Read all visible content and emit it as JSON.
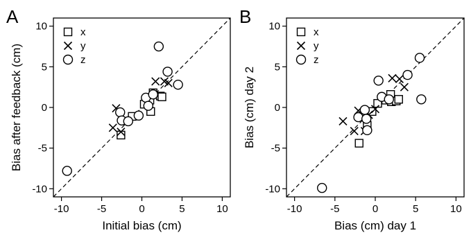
{
  "chart_data": [
    {
      "type": "scatter",
      "panel_letter": "A",
      "xlabel": "Initial bias (cm)",
      "ylabel": "Bias after feedback (cm)",
      "xlim": [
        -11,
        11
      ],
      "ylim": [
        -11,
        11
      ],
      "xticks": [
        -10,
        -5,
        0,
        5,
        10
      ],
      "yticks": [
        -10,
        -5,
        0,
        5,
        10
      ],
      "reference_line": "identity (dashed)",
      "grid": false,
      "legend_placement": "top-left",
      "series": [
        {
          "name": "x",
          "marker": "square",
          "points": [
            [
              -2.6,
              -3.4
            ],
            [
              -1.2,
              -1.1
            ],
            [
              0.3,
              0.4
            ],
            [
              1.1,
              -0.5
            ],
            [
              1.4,
              1.8
            ],
            [
              1.0,
              0.9
            ],
            [
              2.3,
              1.4
            ],
            [
              2.5,
              1.3
            ]
          ]
        },
        {
          "name": "y",
          "marker": "cross",
          "points": [
            [
              -3.6,
              -2.5
            ],
            [
              -3.2,
              -0.1
            ],
            [
              -2.6,
              -3.0
            ],
            [
              1.7,
              3.2
            ],
            [
              2.8,
              3.2
            ],
            [
              3.3,
              3.0
            ]
          ]
        },
        {
          "name": "z",
          "marker": "circle",
          "points": [
            [
              -9.3,
              -7.8
            ],
            [
              -2.7,
              -0.6
            ],
            [
              -2.5,
              -1.6
            ],
            [
              -1.7,
              -1.7
            ],
            [
              -0.4,
              -1.0
            ],
            [
              0.5,
              1.2
            ],
            [
              1.4,
              1.6
            ],
            [
              2.1,
              7.5
            ],
            [
              3.2,
              4.4
            ],
            [
              4.5,
              2.8
            ],
            [
              0.8,
              0.2
            ]
          ]
        }
      ]
    },
    {
      "type": "scatter",
      "panel_letter": "B",
      "xlabel": "Bias (cm) day 1",
      "ylabel": "Bias (cm) day 2",
      "xlim": [
        -11,
        11
      ],
      "ylim": [
        -11,
        11
      ],
      "xticks": [
        -10,
        -5,
        0,
        5,
        10
      ],
      "yticks": [
        -10,
        -5,
        0,
        5,
        10
      ],
      "reference_line": "identity (dashed)",
      "grid": false,
      "legend_placement": "top-left",
      "series": [
        {
          "name": "x",
          "marker": "square",
          "points": [
            [
              -2.0,
              -4.4
            ],
            [
              -1.0,
              -2.2
            ],
            [
              -0.4,
              -0.5
            ],
            [
              0.3,
              0.5
            ],
            [
              1.3,
              0.9
            ],
            [
              1.9,
              1.6
            ],
            [
              2.0,
              0.7
            ],
            [
              2.6,
              0.8
            ],
            [
              2.9,
              1.0
            ]
          ]
        },
        {
          "name": "y",
          "marker": "cross",
          "points": [
            [
              -4.0,
              -1.7
            ],
            [
              -2.6,
              -2.9
            ],
            [
              -2.1,
              -0.4
            ],
            [
              -1.3,
              -2.9
            ],
            [
              -0.8,
              -0.9
            ],
            [
              2.1,
              3.6
            ],
            [
              3.0,
              3.5
            ],
            [
              3.6,
              2.5
            ],
            [
              0.0,
              -0.2
            ]
          ]
        },
        {
          "name": "z",
          "marker": "circle",
          "points": [
            [
              -6.6,
              -9.9
            ],
            [
              -2.1,
              -1.2
            ],
            [
              -1.3,
              -0.3
            ],
            [
              -1.1,
              -1.4
            ],
            [
              -1.0,
              -2.8
            ],
            [
              0.4,
              3.3
            ],
            [
              0.8,
              1.3
            ],
            [
              1.7,
              1.0
            ],
            [
              4.0,
              4.0
            ],
            [
              5.5,
              6.1
            ],
            [
              5.7,
              1.0
            ]
          ]
        }
      ]
    }
  ]
}
